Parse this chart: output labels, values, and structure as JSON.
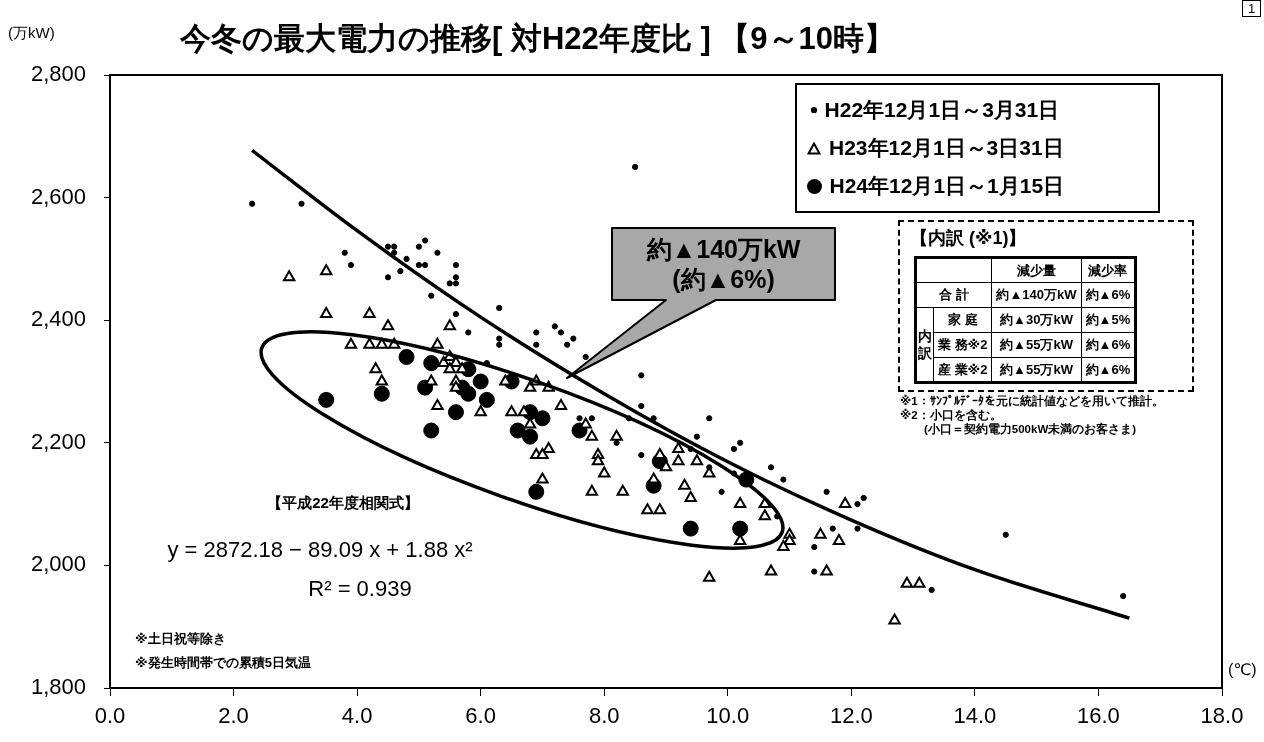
{
  "chart_data": [
    {
      "type": "scatter",
      "title": "今冬の最大電力の推移[ 対H22年度比 ] 【9～10時】",
      "xlabel": "(℃)",
      "ylabel": "(万kW)",
      "xlim": [
        0,
        18
      ],
      "ylim": [
        1800,
        2800
      ],
      "xticks": [
        {
          "value": 0,
          "label": "0.0"
        },
        {
          "value": 2,
          "label": "2.0"
        },
        {
          "value": 4,
          "label": "4.0"
        },
        {
          "value": 6,
          "label": "6.0"
        },
        {
          "value": 8,
          "label": "8.0"
        },
        {
          "value": 10,
          "label": "10.0"
        },
        {
          "value": 12,
          "label": "12.0"
        },
        {
          "value": 14,
          "label": "14.0"
        },
        {
          "value": 16,
          "label": "16.0"
        },
        {
          "value": 18,
          "label": "18.0"
        }
      ],
      "yticks": [
        {
          "value": 1800,
          "label": "1,800"
        },
        {
          "value": 2000,
          "label": "2,000"
        },
        {
          "value": 2200,
          "label": "2,200"
        },
        {
          "value": 2400,
          "label": "2,400"
        },
        {
          "value": 2600,
          "label": "2,600"
        },
        {
          "value": 2800,
          "label": "2,800"
        }
      ],
      "legend": "top right",
      "series": [
        {
          "name": "H22年12月1日～3月31日",
          "color": "#000000",
          "marker": "circle",
          "x": [
            2.3,
            3.1,
            3.8,
            3.9,
            4.5,
            4.6,
            4.6,
            5.1,
            5.0,
            5.3,
            4.8,
            4.5,
            4.7,
            5.0,
            5.1,
            5.6,
            5.6,
            5.5,
            5.6,
            5.2,
            5.6,
            6.3,
            5.8,
            6.3,
            6.3,
            6.1,
            6.9,
            7.2,
            7.3,
            7.4,
            7.5,
            6.9,
            7.7,
            8.6,
            8.6,
            8.4,
            8.8,
            9.7,
            7.8,
            7.6,
            8.2,
            8.6,
            9.4,
            9.5,
            10.1,
            10.2,
            9.7,
            10.1,
            10.7,
            10.9,
            9.9,
            10.8,
            11.6,
            12.1,
            12.2,
            11.7,
            12.1,
            11.4,
            11.4,
            14.5,
            13.3,
            16.4,
            8.5
          ],
          "values": [
            2590,
            2590,
            2510,
            2490,
            2520,
            2520,
            2510,
            2530,
            2520,
            2510,
            2500,
            2470,
            2480,
            2490,
            2490,
            2490,
            2470,
            2460,
            2460,
            2440,
            2410,
            2420,
            2380,
            2370,
            2360,
            2330,
            2380,
            2390,
            2380,
            2360,
            2370,
            2360,
            2340,
            2310,
            2260,
            2240,
            2240,
            2240,
            2240,
            2240,
            2200,
            2180,
            2190,
            2210,
            2190,
            2200,
            2160,
            2150,
            2160,
            2140,
            2120,
            2080,
            2120,
            2100,
            2110,
            2060,
            2060,
            2030,
            1990,
            2050,
            1960,
            1950,
            2650
          ]
        },
        {
          "name": "H23年12月1日～3日31日",
          "color": "#000000",
          "marker": "triangle",
          "x": [
            2.9,
            3.5,
            3.5,
            4.2,
            4.5,
            5.5,
            3.9,
            4.2,
            4.4,
            4.6,
            5.3,
            5.4,
            5.5,
            5.6,
            5.5,
            5.7,
            4.3,
            4.4,
            5.2,
            5.6,
            5.6,
            6.4,
            6.8,
            5.3,
            6.0,
            6.5,
            6.7,
            6.8,
            6.9,
            7.1,
            7.3,
            7.7,
            7.8,
            8.2,
            6.9,
            7.1,
            7.0,
            7.9,
            7.9,
            8.0,
            7.0,
            7.8,
            8.3,
            8.9,
            9.0,
            8.8,
            9.2,
            9.2,
            9.5,
            9.7,
            9.3,
            9.4,
            8.7,
            8.9,
            10.2,
            10.6,
            10.6,
            11.0,
            11.0,
            10.9,
            10.2,
            11.9,
            11.5,
            11.8,
            11.6,
            12.9,
            13.1,
            12.7,
            9.7,
            10.7
          ],
          "values": [
            2470,
            2480,
            2410,
            2410,
            2390,
            2390,
            2360,
            2360,
            2360,
            2360,
            2360,
            2330,
            2340,
            2330,
            2320,
            2320,
            2320,
            2300,
            2300,
            2300,
            2290,
            2300,
            2290,
            2260,
            2250,
            2250,
            2250,
            2230,
            2300,
            2290,
            2260,
            2230,
            2210,
            2210,
            2180,
            2190,
            2180,
            2180,
            2170,
            2150,
            2140,
            2120,
            2120,
            2180,
            2160,
            2140,
            2190,
            2170,
            2170,
            2150,
            2130,
            2110,
            2090,
            2090,
            2100,
            2100,
            2080,
            2050,
            2040,
            2030,
            2040,
            2100,
            2050,
            2040,
            1990,
            1970,
            1970,
            1910,
            1980,
            1990
          ]
        },
        {
          "name": "H24年12月1日～1月15日",
          "color": "#000000",
          "marker": "circle",
          "x": [
            4.8,
            5.2,
            5.8,
            6.0,
            5.1,
            5.7,
            5.8,
            6.1,
            6.5,
            4.4,
            3.5,
            5.6,
            6.8,
            5.2,
            6.6,
            6.8,
            7.0,
            7.6,
            8.9,
            8.8,
            6.9,
            9.4,
            10.2,
            10.3
          ],
          "values": [
            2340,
            2330,
            2320,
            2300,
            2290,
            2290,
            2280,
            2270,
            2300,
            2280,
            2270,
            2250,
            2250,
            2220,
            2220,
            2210,
            2240,
            2220,
            2170,
            2130,
            2120,
            2060,
            2060,
            2140
          ]
        },
        {
          "type": "line",
          "color": "#000000",
          "marker": "none",
          "x": [
            2.3,
            4,
            6,
            8,
            10,
            12,
            14,
            16.5
          ],
          "values": [
            2677,
            2546,
            2405,
            2280,
            2169,
            2074,
            1993,
            1914
          ]
        }
      ],
      "annotations": [
        "【平成22年度相関式】",
        "y = 2872.18 − 89.09 x + 1.88 x²",
        "R² = 0.939",
        "※土日祝等除き",
        "※発生時間帯での累積5日気温",
        "約▲140万kW (約▲6%)",
        "1"
      ]
    },
    {
      "type": "other",
      "title": "【内訳 (※1)】",
      "annotations": [
        "減少量",
        "減少率",
        "合 計",
        "約▲140万kW",
        "約▲6%",
        "内訳",
        "家 庭",
        "約▲30万kW",
        "約▲5%",
        "業 務※2",
        "約▲55万kW",
        "約▲6%",
        "産 業※2",
        "約▲55万kW",
        "約▲6%",
        "※1：ｻﾝﾌﾟﾙﾃﾞｰﾀを元に統計値などを用いて推計。",
        "※2：小口を含む。",
        "(小口＝契約電力500kW未満のお客さま)"
      ]
    }
  ]
}
